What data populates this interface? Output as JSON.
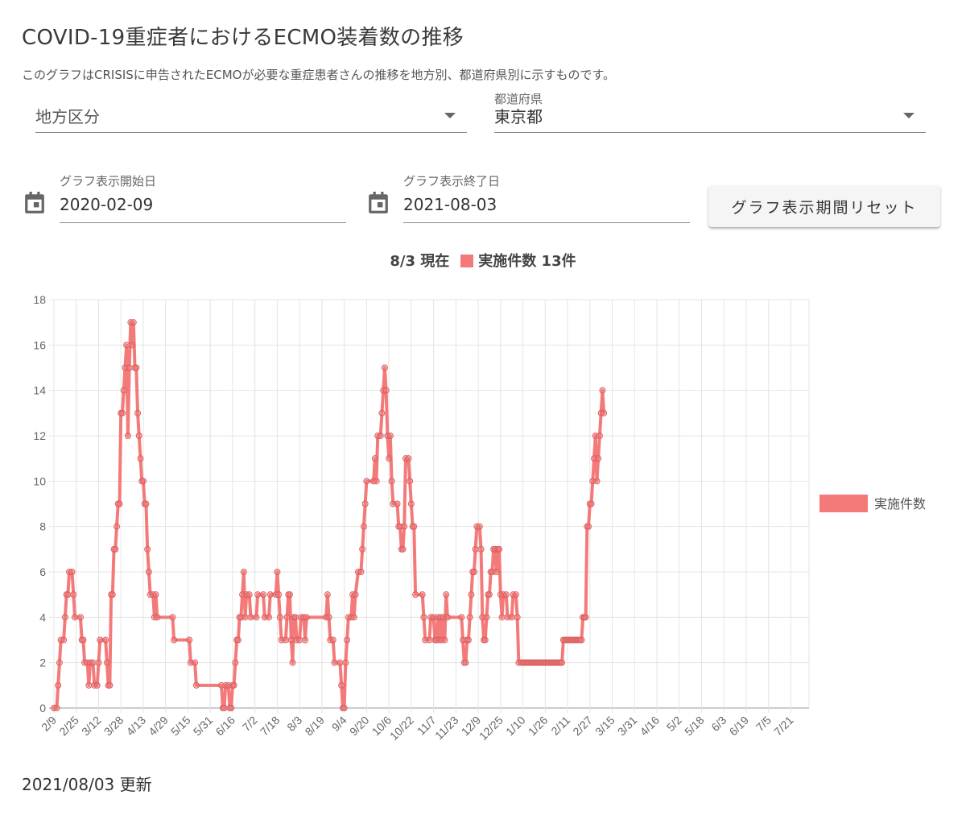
{
  "page": {
    "title": "COVID-19重症者におけるECMO装着数の推移",
    "subtitle": "このグラフはCRISISに申告されたECMOが必要な重症患者さんの推移を地方別、都道府県別に示すものです。"
  },
  "filters": {
    "region": {
      "label": "",
      "placeholder": "地方区分",
      "value": ""
    },
    "prefecture": {
      "label": "都道府県",
      "value": "東京都"
    }
  },
  "date_range": {
    "start": {
      "label": "グラフ表示開始日",
      "value": "2020-02-09"
    },
    "end": {
      "label": "グラフ表示終了日",
      "value": "2021-08-03"
    },
    "reset_label": "グラフ表示期間リセット"
  },
  "summary": {
    "as_of": "8/3 現在",
    "series_label": "実施件数 13件"
  },
  "updated": "2021/08/03 更新",
  "chart_data": {
    "type": "line",
    "title": "",
    "xlabel": "",
    "ylabel": "",
    "ylim": [
      0,
      18
    ],
    "yticks": [
      0,
      2,
      4,
      6,
      8,
      10,
      12,
      14,
      16,
      18
    ],
    "grid": true,
    "legend": "right",
    "x_tick_labels": [
      "2/9",
      "2/25",
      "3/12",
      "3/28",
      "4/13",
      "4/29",
      "5/15",
      "5/31",
      "6/16",
      "7/2",
      "7/18",
      "8/3",
      "8/19",
      "9/4",
      "9/20",
      "10/6",
      "10/22",
      "11/7",
      "11/23",
      "12/9",
      "12/25",
      "1/10",
      "1/26",
      "2/11",
      "2/27",
      "3/15",
      "3/31",
      "4/16",
      "5/2",
      "5/18",
      "6/3",
      "6/19",
      "7/5",
      "7/21"
    ],
    "x_start": "2020-02-09",
    "x_end": "2021-08-03",
    "series": [
      {
        "name": "実施件数",
        "color": "#f47a7a",
        "points": [
          [
            "2020-02-09",
            0
          ],
          [
            "2020-02-11",
            0
          ],
          [
            "2020-02-12",
            1
          ],
          [
            "2020-02-13",
            2
          ],
          [
            "2020-02-14",
            3
          ],
          [
            "2020-02-16",
            3
          ],
          [
            "2020-02-17",
            4
          ],
          [
            "2020-02-18",
            5
          ],
          [
            "2020-02-19",
            5
          ],
          [
            "2020-02-20",
            6
          ],
          [
            "2020-02-22",
            6
          ],
          [
            "2020-02-23",
            5
          ],
          [
            "2020-02-24",
            4
          ],
          [
            "2020-02-28",
            4
          ],
          [
            "2020-02-29",
            3
          ],
          [
            "2020-03-01",
            3
          ],
          [
            "2020-03-02",
            2
          ],
          [
            "2020-03-04",
            2
          ],
          [
            "2020-03-05",
            1
          ],
          [
            "2020-03-06",
            2
          ],
          [
            "2020-03-08",
            2
          ],
          [
            "2020-03-09",
            1
          ],
          [
            "2020-03-11",
            1
          ],
          [
            "2020-03-12",
            2
          ],
          [
            "2020-03-13",
            3
          ],
          [
            "2020-03-17",
            3
          ],
          [
            "2020-03-18",
            2
          ],
          [
            "2020-03-19",
            1
          ],
          [
            "2020-03-20",
            1
          ],
          [
            "2020-03-21",
            5
          ],
          [
            "2020-03-22",
            5
          ],
          [
            "2020-03-23",
            7
          ],
          [
            "2020-03-24",
            7
          ],
          [
            "2020-03-25",
            8
          ],
          [
            "2020-03-26",
            9
          ],
          [
            "2020-03-27",
            9
          ],
          [
            "2020-03-28",
            13
          ],
          [
            "2020-03-29",
            13
          ],
          [
            "2020-03-30",
            14
          ],
          [
            "2020-03-31",
            15
          ],
          [
            "2020-04-01",
            16
          ],
          [
            "2020-04-02",
            12
          ],
          [
            "2020-04-03",
            15
          ],
          [
            "2020-04-04",
            17
          ],
          [
            "2020-04-05",
            16
          ],
          [
            "2020-04-06",
            17
          ],
          [
            "2020-04-07",
            15
          ],
          [
            "2020-04-08",
            15
          ],
          [
            "2020-04-09",
            13
          ],
          [
            "2020-04-10",
            12
          ],
          [
            "2020-04-11",
            11
          ],
          [
            "2020-04-12",
            10
          ],
          [
            "2020-04-13",
            10
          ],
          [
            "2020-04-14",
            9
          ],
          [
            "2020-04-15",
            9
          ],
          [
            "2020-04-16",
            7
          ],
          [
            "2020-04-17",
            6
          ],
          [
            "2020-04-18",
            5
          ],
          [
            "2020-04-20",
            5
          ],
          [
            "2020-04-21",
            4
          ],
          [
            "2020-04-22",
            5
          ],
          [
            "2020-04-23",
            4
          ],
          [
            "2020-05-04",
            4
          ],
          [
            "2020-05-05",
            3
          ],
          [
            "2020-05-16",
            3
          ],
          [
            "2020-05-17",
            2
          ],
          [
            "2020-05-20",
            2
          ],
          [
            "2020-05-21",
            1
          ],
          [
            "2020-06-08",
            1
          ],
          [
            "2020-06-09",
            0
          ],
          [
            "2020-06-10",
            0
          ],
          [
            "2020-06-11",
            1
          ],
          [
            "2020-06-13",
            1
          ],
          [
            "2020-06-14",
            0
          ],
          [
            "2020-06-15",
            0
          ],
          [
            "2020-06-16",
            1
          ],
          [
            "2020-06-17",
            1
          ],
          [
            "2020-06-18",
            2
          ],
          [
            "2020-06-19",
            3
          ],
          [
            "2020-06-20",
            3
          ],
          [
            "2020-06-21",
            4
          ],
          [
            "2020-06-22",
            4
          ],
          [
            "2020-06-23",
            5
          ],
          [
            "2020-06-24",
            6
          ],
          [
            "2020-06-25",
            4
          ],
          [
            "2020-06-26",
            5
          ],
          [
            "2020-06-28",
            5
          ],
          [
            "2020-06-29",
            4
          ],
          [
            "2020-07-03",
            4
          ],
          [
            "2020-07-04",
            5
          ],
          [
            "2020-07-08",
            5
          ],
          [
            "2020-07-09",
            4
          ],
          [
            "2020-07-12",
            4
          ],
          [
            "2020-07-13",
            5
          ],
          [
            "2020-07-17",
            5
          ],
          [
            "2020-07-18",
            6
          ],
          [
            "2020-07-19",
            5
          ],
          [
            "2020-07-20",
            4
          ],
          [
            "2020-07-21",
            3
          ],
          [
            "2020-07-24",
            3
          ],
          [
            "2020-07-25",
            4
          ],
          [
            "2020-07-26",
            5
          ],
          [
            "2020-07-27",
            5
          ],
          [
            "2020-07-28",
            3
          ],
          [
            "2020-07-29",
            2
          ],
          [
            "2020-07-30",
            4
          ],
          [
            "2020-07-31",
            4
          ],
          [
            "2020-08-01",
            3
          ],
          [
            "2020-08-03",
            3
          ],
          [
            "2020-08-04",
            4
          ],
          [
            "2020-08-06",
            4
          ],
          [
            "2020-08-07",
            3
          ],
          [
            "2020-08-08",
            4
          ],
          [
            "2020-08-22",
            4
          ],
          [
            "2020-08-23",
            5
          ],
          [
            "2020-08-24",
            4
          ],
          [
            "2020-08-25",
            3
          ],
          [
            "2020-08-27",
            3
          ],
          [
            "2020-08-28",
            2
          ],
          [
            "2020-09-01",
            2
          ],
          [
            "2020-09-02",
            1
          ],
          [
            "2020-09-03",
            0
          ],
          [
            "2020-09-04",
            0
          ],
          [
            "2020-09-05",
            2
          ],
          [
            "2020-09-06",
            3
          ],
          [
            "2020-09-07",
            4
          ],
          [
            "2020-09-09",
            4
          ],
          [
            "2020-09-10",
            5
          ],
          [
            "2020-09-11",
            4
          ],
          [
            "2020-09-12",
            5
          ],
          [
            "2020-09-14",
            6
          ],
          [
            "2020-09-16",
            6
          ],
          [
            "2020-09-17",
            7
          ],
          [
            "2020-09-18",
            8
          ],
          [
            "2020-09-19",
            9
          ],
          [
            "2020-09-20",
            10
          ],
          [
            "2020-09-25",
            10
          ],
          [
            "2020-09-26",
            11
          ],
          [
            "2020-09-27",
            10
          ],
          [
            "2020-09-28",
            12
          ],
          [
            "2020-09-30",
            12
          ],
          [
            "2020-10-01",
            13
          ],
          [
            "2020-10-02",
            14
          ],
          [
            "2020-10-03",
            15
          ],
          [
            "2020-10-04",
            14
          ],
          [
            "2020-10-05",
            12
          ],
          [
            "2020-10-06",
            11
          ],
          [
            "2020-10-07",
            12
          ],
          [
            "2020-10-08",
            10
          ],
          [
            "2020-10-09",
            9
          ],
          [
            "2020-10-12",
            9
          ],
          [
            "2020-10-13",
            8
          ],
          [
            "2020-10-14",
            8
          ],
          [
            "2020-10-15",
            7
          ],
          [
            "2020-10-16",
            7
          ],
          [
            "2020-10-17",
            8
          ],
          [
            "2020-10-18",
            11
          ],
          [
            "2020-10-20",
            11
          ],
          [
            "2020-10-21",
            10
          ],
          [
            "2020-10-22",
            9
          ],
          [
            "2020-10-23",
            8
          ],
          [
            "2020-10-24",
            8
          ],
          [
            "2020-10-25",
            5
          ],
          [
            "2020-10-30",
            5
          ],
          [
            "2020-10-31",
            4
          ],
          [
            "2020-11-01",
            3
          ],
          [
            "2020-11-04",
            3
          ],
          [
            "2020-11-05",
            4
          ],
          [
            "2020-11-07",
            4
          ],
          [
            "2020-11-08",
            3
          ],
          [
            "2020-11-09",
            3
          ],
          [
            "2020-11-10",
            4
          ],
          [
            "2020-11-11",
            3
          ],
          [
            "2020-11-12",
            4
          ],
          [
            "2020-11-13",
            3
          ],
          [
            "2020-11-14",
            4
          ],
          [
            "2020-11-15",
            3
          ],
          [
            "2020-11-16",
            5
          ],
          [
            "2020-11-17",
            4
          ],
          [
            "2020-11-27",
            4
          ],
          [
            "2020-11-28",
            3
          ],
          [
            "2020-11-29",
            2
          ],
          [
            "2020-11-30",
            2
          ],
          [
            "2020-12-01",
            3
          ],
          [
            "2020-12-02",
            3
          ],
          [
            "2020-12-03",
            4
          ],
          [
            "2020-12-04",
            5
          ],
          [
            "2020-12-05",
            6
          ],
          [
            "2020-12-06",
            6
          ],
          [
            "2020-12-07",
            7
          ],
          [
            "2020-12-08",
            8
          ],
          [
            "2020-12-10",
            8
          ],
          [
            "2020-12-11",
            7
          ],
          [
            "2020-12-12",
            4
          ],
          [
            "2020-12-13",
            3
          ],
          [
            "2020-12-14",
            3
          ],
          [
            "2020-12-15",
            4
          ],
          [
            "2020-12-16",
            5
          ],
          [
            "2020-12-17",
            5
          ],
          [
            "2020-12-18",
            6
          ],
          [
            "2020-12-19",
            6
          ],
          [
            "2020-12-20",
            7
          ],
          [
            "2020-12-21",
            7
          ],
          [
            "2020-12-22",
            6
          ],
          [
            "2020-12-23",
            7
          ],
          [
            "2020-12-24",
            7
          ],
          [
            "2020-12-25",
            5
          ],
          [
            "2020-12-26",
            4
          ],
          [
            "2020-12-27",
            5
          ],
          [
            "2020-12-29",
            5
          ],
          [
            "2020-12-30",
            4
          ],
          [
            "2021-01-02",
            4
          ],
          [
            "2021-01-03",
            5
          ],
          [
            "2021-01-05",
            5
          ],
          [
            "2021-01-06",
            4
          ],
          [
            "2021-01-07",
            2
          ],
          [
            "2021-01-09",
            2
          ],
          [
            "2021-01-10",
            2
          ],
          [
            "2021-01-11",
            2
          ],
          [
            "2021-01-12",
            2
          ],
          [
            "2021-01-13",
            2
          ],
          [
            "2021-01-14",
            2
          ],
          [
            "2021-01-15",
            2
          ],
          [
            "2021-01-16",
            2
          ],
          [
            "2021-01-17",
            2
          ],
          [
            "2021-01-18",
            2
          ],
          [
            "2021-01-19",
            2
          ],
          [
            "2021-01-20",
            2
          ],
          [
            "2021-01-21",
            2
          ],
          [
            "2021-01-22",
            2
          ],
          [
            "2021-01-23",
            2
          ],
          [
            "2021-01-24",
            2
          ],
          [
            "2021-01-25",
            2
          ],
          [
            "2021-01-26",
            2
          ],
          [
            "2021-01-27",
            2
          ],
          [
            "2021-01-28",
            2
          ],
          [
            "2021-01-29",
            2
          ],
          [
            "2021-01-30",
            2
          ],
          [
            "2021-01-31",
            2
          ],
          [
            "2021-02-01",
            2
          ],
          [
            "2021-02-02",
            2
          ],
          [
            "2021-02-03",
            2
          ],
          [
            "2021-02-04",
            2
          ],
          [
            "2021-02-05",
            2
          ],
          [
            "2021-02-06",
            2
          ],
          [
            "2021-02-07",
            2
          ],
          [
            "2021-02-08",
            3
          ],
          [
            "2021-02-09",
            3
          ],
          [
            "2021-02-10",
            3
          ],
          [
            "2021-02-11",
            3
          ],
          [
            "2021-02-12",
            3
          ],
          [
            "2021-02-13",
            3
          ],
          [
            "2021-02-14",
            3
          ],
          [
            "2021-02-15",
            3
          ],
          [
            "2021-02-16",
            3
          ],
          [
            "2021-02-17",
            3
          ],
          [
            "2021-02-18",
            3
          ],
          [
            "2021-02-19",
            3
          ],
          [
            "2021-02-20",
            3
          ],
          [
            "2021-02-21",
            3
          ],
          [
            "2021-02-22",
            4
          ],
          [
            "2021-02-23",
            4
          ],
          [
            "2021-02-24",
            4
          ],
          [
            "2021-02-25",
            8
          ],
          [
            "2021-02-26",
            8
          ],
          [
            "2021-02-27",
            9
          ],
          [
            "2021-02-28",
            9
          ],
          [
            "2021-03-01",
            10
          ],
          [
            "2021-03-02",
            11
          ],
          [
            "2021-03-03",
            12
          ],
          [
            "2021-03-04",
            10
          ],
          [
            "2021-03-05",
            11
          ],
          [
            "2021-03-06",
            12
          ],
          [
            "2021-03-07",
            13
          ],
          [
            "2021-03-08",
            14
          ],
          [
            "2021-03-09",
            13
          ]
        ]
      }
    ]
  }
}
